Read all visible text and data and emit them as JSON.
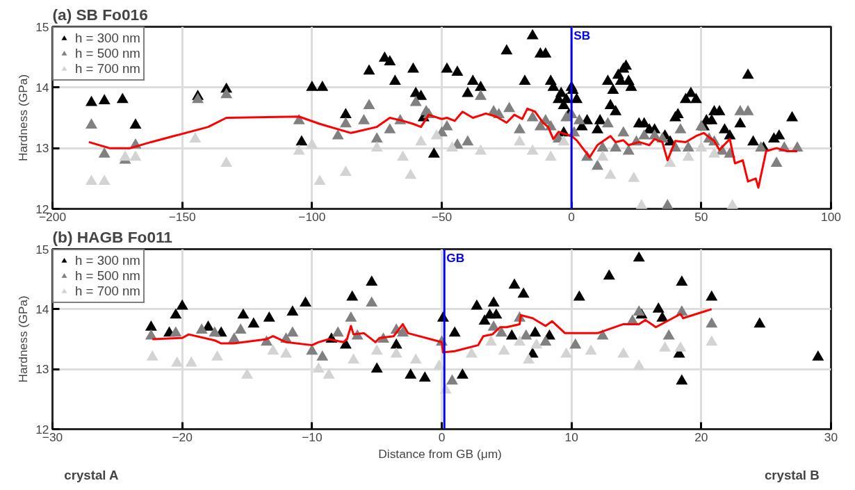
{
  "chart_data": [
    {
      "type": "scatter",
      "title": "(a) SB Fo016",
      "ylabel": "Hardness (GPa)",
      "xlim": [
        -200,
        100
      ],
      "ylim": [
        12,
        15
      ],
      "xticks": [
        -200,
        -150,
        -100,
        -50,
        0,
        50,
        100
      ],
      "yticks": [
        12,
        13,
        14,
        15
      ],
      "grid": true,
      "legend": "top left",
      "ref_lines": [
        {
          "axis": "x",
          "value": 0,
          "label": "SB",
          "color": "#0000ff"
        }
      ],
      "series": [
        {
          "name": "h = 300 nm",
          "marker": "triangle",
          "color": "#000000",
          "x": [
            -185,
            -180,
            -173,
            -168,
            -144,
            -133,
            -104,
            -100,
            -96,
            -87,
            -78,
            -72,
            -70,
            -68,
            -61,
            -60,
            -58,
            -57,
            -53,
            -48,
            -44,
            -40,
            -38,
            -35,
            -25,
            -18,
            -15,
            -12,
            -10,
            -8,
            -7,
            -5,
            -4,
            -3,
            -2,
            0,
            0.5,
            -1,
            -3,
            2,
            4,
            6,
            10,
            11,
            14,
            16,
            18,
            19,
            20,
            21,
            22,
            23,
            15,
            17,
            26,
            28,
            30,
            32,
            36,
            38,
            40,
            41,
            44,
            46,
            48,
            51,
            52,
            54,
            55,
            57,
            59,
            61,
            65,
            68,
            70,
            74,
            78,
            80,
            85
          ],
          "values": [
            13.75,
            13.78,
            13.8,
            13.38,
            13.85,
            13.97,
            13.1,
            14.0,
            14.0,
            13.55,
            14.27,
            14.48,
            14.42,
            14.1,
            14.3,
            13.9,
            13.85,
            13.5,
            12.9,
            14.3,
            14.25,
            13.9,
            14.1,
            14.0,
            14.6,
            14.1,
            14.85,
            14.55,
            14.55,
            14.1,
            14.0,
            13.8,
            13.9,
            13.7,
            13.8,
            14.0,
            13.95,
            13.55,
            13.25,
            13.8,
            13.35,
            13.45,
            13.3,
            13.45,
            14.1,
            13.95,
            14.2,
            14.1,
            14.3,
            14.35,
            14.1,
            14.0,
            13.7,
            13.6,
            13.4,
            13.4,
            13.3,
            13.3,
            13.2,
            13.1,
            13.5,
            13.55,
            13.8,
            13.9,
            13.8,
            13.35,
            13.45,
            13.45,
            13.6,
            13.6,
            13.3,
            13.2,
            13.4,
            14.2,
            13.1,
            13.0,
            13.15,
            13.2,
            13.5
          ]
        },
        {
          "name": "h = 500 nm",
          "marker": "triangle",
          "color": "#808080",
          "x": [
            -185,
            -180,
            -172,
            -168,
            -144,
            -133,
            -105,
            -90,
            -87,
            -80,
            -78,
            -75,
            -70,
            -66,
            -60,
            -56,
            -55,
            -50,
            -48,
            -44,
            -40,
            -35,
            -30,
            -28,
            -24,
            -20,
            -15,
            -12,
            -10,
            -8,
            -5,
            -2,
            0,
            1,
            3,
            6,
            10,
            12,
            14,
            17,
            20,
            22,
            25,
            28,
            32,
            35,
            37,
            40,
            42,
            45,
            50,
            53,
            55,
            58,
            61,
            65,
            68,
            73,
            79,
            82,
            87
          ],
          "values": [
            13.38,
            12.9,
            12.8,
            13.05,
            13.8,
            13.88,
            13.45,
            13.2,
            13.4,
            13.45,
            13.7,
            13.15,
            13.3,
            13.45,
            13.75,
            13.6,
            13.55,
            13.25,
            13.35,
            13.05,
            13.1,
            13.85,
            13.6,
            13.55,
            13.65,
            13.3,
            13.5,
            13.35,
            13.45,
            13.35,
            13.15,
            13.5,
            13.55,
            13.25,
            13.45,
            12.85,
            12.7,
            13.0,
            13.4,
            13.0,
            13.25,
            12.95,
            13.1,
            13.2,
            13.2,
            13.15,
            12.05,
            13.0,
            13.3,
            13.0,
            13.35,
            13.15,
            13.1,
            12.95,
            12.9,
            13.6,
            13.6,
            13.0,
            12.75,
            13.0,
            13.0
          ]
        },
        {
          "name": "h = 700 nm",
          "marker": "triangle",
          "color": "#d3d3d3",
          "x": [
            -185,
            -180,
            -172,
            -168,
            -145,
            -133,
            -105,
            -100,
            -97,
            -87,
            -75,
            -65,
            -62,
            -58,
            -52,
            -46,
            -35,
            -20,
            -15,
            -8,
            -3,
            12,
            15,
            24,
            27,
            38,
            45,
            50,
            55,
            62
          ],
          "values": [
            12.45,
            12.45,
            12.85,
            12.85,
            13.15,
            12.75,
            12.95,
            13.05,
            12.45,
            12.6,
            13.0,
            12.85,
            12.55,
            13.1,
            13.2,
            13.0,
            12.95,
            13.1,
            12.95,
            12.85,
            13.1,
            12.85,
            12.55,
            12.5,
            12.05,
            12.75,
            12.85,
            13.0,
            12.9,
            12.05
          ]
        },
        {
          "type": "line",
          "color": "#ff0000",
          "x": [
            -186,
            -178,
            -170,
            -162,
            -140,
            -133,
            -105,
            -97,
            -85,
            -75,
            -70,
            -65,
            -61,
            -58,
            -55,
            -50,
            -48,
            -45,
            -42,
            -38,
            -33,
            -29,
            -25,
            -22,
            -19,
            -17,
            -14,
            -11,
            -9,
            -7,
            -5,
            0,
            2,
            7,
            10,
            15,
            17,
            20,
            22,
            26,
            30,
            32,
            35,
            37,
            40,
            44,
            48,
            51,
            53,
            55,
            57,
            61,
            63,
            66,
            68,
            71,
            72,
            75,
            79,
            83,
            87
          ],
          "values": [
            13.1,
            13.0,
            13.0,
            13.1,
            13.35,
            13.5,
            13.52,
            13.4,
            13.25,
            13.35,
            13.5,
            13.45,
            13.4,
            13.35,
            13.55,
            13.48,
            13.5,
            13.45,
            13.6,
            13.5,
            13.57,
            13.52,
            13.42,
            13.55,
            13.48,
            13.65,
            13.6,
            13.42,
            13.35,
            13.15,
            13.27,
            13.2,
            13.13,
            12.85,
            13.05,
            13.2,
            13.1,
            13.13,
            13.05,
            13.1,
            13.05,
            13.15,
            13.1,
            12.8,
            13.12,
            13.1,
            13.2,
            13.25,
            13.18,
            13.12,
            12.97,
            13.15,
            12.75,
            12.8,
            12.45,
            12.5,
            12.35,
            12.95,
            13.0,
            12.95,
            12.95
          ]
        }
      ]
    },
    {
      "type": "scatter",
      "title": "(b) HAGB Fo011",
      "xlabel": "Distance from GB  (μm)",
      "ylabel": "Hardness (GPa)",
      "xlim": [
        -30,
        30
      ],
      "ylim": [
        12,
        15
      ],
      "xticks": [
        -30,
        -20,
        -10,
        0,
        10,
        20,
        30
      ],
      "yticks": [
        12,
        13,
        14,
        15
      ],
      "grid": true,
      "legend": "top left",
      "annotations": [
        "crystal A",
        "crystal B"
      ],
      "ref_lines": [
        {
          "axis": "x",
          "value": 0.2,
          "label": "GB",
          "color": "#0000ff"
        }
      ],
      "series": [
        {
          "name": "h = 300 nm",
          "marker": "triangle",
          "color": "#000000",
          "x": [
            -22.4,
            -21,
            -20.5,
            -20,
            -18,
            -17,
            -15.3,
            -14.5,
            -13.3,
            -11.5,
            -10.5,
            -8.5,
            -7.4,
            -6.9,
            -5.4,
            -5,
            -3.5,
            -2.4,
            -1.3,
            0.1,
            1,
            1.6,
            2.7,
            3.3,
            3.7,
            4,
            4.2,
            5.6,
            5.4,
            6.3,
            7.2,
            7,
            8.3,
            10.6,
            12.9,
            15.2,
            15.4,
            16.7,
            17,
            18.5,
            18.3,
            18.5,
            20.8,
            24.5,
            29
          ],
          "values": [
            13.7,
            13.6,
            13.9,
            14.05,
            13.7,
            13.6,
            13.9,
            13.75,
            13.85,
            13.95,
            14.1,
            13.5,
            13.4,
            14.2,
            14.45,
            13.0,
            13.4,
            12.9,
            12.85,
            13.85,
            13.6,
            12.9,
            14.05,
            13.8,
            13.9,
            14.1,
            13.9,
            14.4,
            13.55,
            14.25,
            13.6,
            13.25,
            13.55,
            14.2,
            14.55,
            14.85,
            13.9,
            14.0,
            13.85,
            14.45,
            13.25,
            12.8,
            14.2,
            13.75,
            13.2
          ]
        },
        {
          "name": "h = 500 nm",
          "marker": "triangle",
          "color": "#808080",
          "x": [
            -22.4,
            -20.5,
            -18.5,
            -17.5,
            -16,
            -15.5,
            -13.5,
            -12,
            -11.5,
            -10,
            -9.2,
            -8,
            -7,
            -6.5,
            -5.4,
            -4.5,
            -3.5,
            -3,
            0,
            0.8,
            4,
            4.6,
            6,
            6.5,
            8,
            10.3,
            12.4,
            14.7,
            15.2,
            17.5,
            18.5,
            20.8
          ],
          "values": [
            13.55,
            13.6,
            13.65,
            13.6,
            13.5,
            13.65,
            13.45,
            13.5,
            13.6,
            13.3,
            13.2,
            13.6,
            13.85,
            13.55,
            14.1,
            13.5,
            13.65,
            13.6,
            13.45,
            12.8,
            13.7,
            13.6,
            13.85,
            13.55,
            13.45,
            13.4,
            13.55,
            13.8,
            13.95,
            13.55,
            13.95,
            13.75
          ]
        },
        {
          "name": "h = 700 nm",
          "marker": "triangle",
          "color": "#d3d3d3",
          "x": [
            -22.3,
            -20.4,
            -19.3,
            -17.3,
            -15,
            -13,
            -12,
            -9.5,
            -8.7,
            -6.8,
            -5,
            -3.5,
            -2,
            -0.2,
            0.3,
            2.3,
            3.8,
            4.8,
            6,
            6.7,
            7.3,
            9.6,
            11.5,
            14,
            15.2,
            17.2,
            18.4,
            20.8
          ],
          "values": [
            13.2,
            13.1,
            13.1,
            13.2,
            12.9,
            13.3,
            13.25,
            13.0,
            12.9,
            13.15,
            13.3,
            13.25,
            13.15,
            13.05,
            12.65,
            13.25,
            13.45,
            13.3,
            13.45,
            13.15,
            13.4,
            13.25,
            13.3,
            13.25,
            13.05,
            13.35,
            13.35,
            13.45
          ]
        },
        {
          "type": "line",
          "color": "#ff0000",
          "x": [
            -22.3,
            -20,
            -19.5,
            -17.5,
            -17,
            -16,
            -13.5,
            -13,
            -12,
            -10,
            -9.5,
            -8.7,
            -7.6,
            -7.3,
            -7.0,
            -6.8,
            -6,
            -5.1,
            -4.8,
            -3.7,
            -3.0,
            -2.6,
            0,
            0.1,
            1.0,
            2.8,
            3.2,
            3.9,
            4.5,
            5.0,
            6.0,
            6.1,
            7.0,
            8.0,
            8.5,
            9.5,
            12,
            14,
            15.2,
            15.7,
            16.5,
            17.8,
            18.4,
            18.6,
            20.8
          ],
          "values": [
            13.5,
            13.52,
            13.58,
            13.48,
            13.43,
            13.43,
            13.5,
            13.55,
            13.45,
            13.4,
            13.45,
            13.5,
            13.45,
            13.5,
            13.72,
            13.58,
            13.6,
            13.45,
            13.52,
            13.55,
            13.75,
            13.6,
            13.45,
            13.28,
            13.3,
            13.4,
            13.55,
            13.58,
            13.7,
            13.7,
            13.75,
            13.9,
            13.85,
            13.72,
            13.8,
            13.6,
            13.6,
            13.75,
            13.75,
            13.82,
            13.7,
            13.85,
            13.92,
            13.85,
            14.0
          ]
        }
      ]
    }
  ]
}
